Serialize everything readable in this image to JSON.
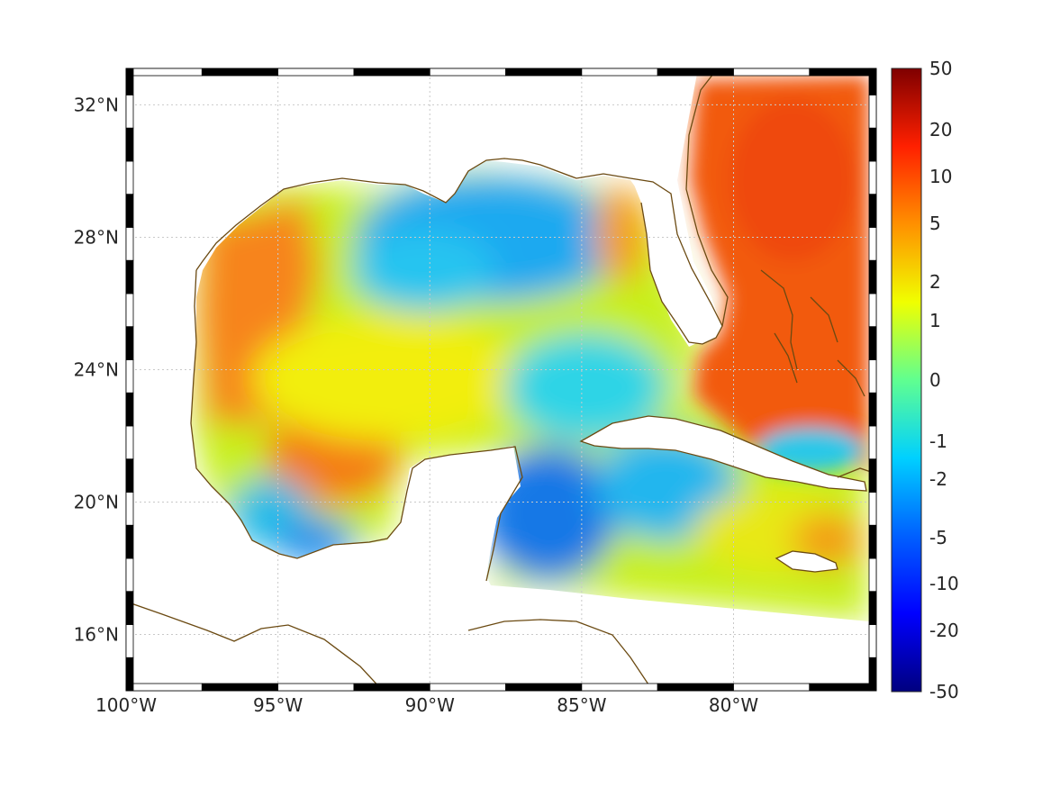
{
  "map": {
    "lon_range": [
      -100,
      -75.3
    ],
    "lat_range": [
      14.3,
      33.1
    ],
    "x_tick_labels": [
      {
        "lon": -100,
        "label": "100°W"
      },
      {
        "lon": -95,
        "label": "95°W"
      },
      {
        "lon": -90,
        "label": "90°W"
      },
      {
        "lon": -85,
        "label": "85°W"
      },
      {
        "lon": -80,
        "label": "80°W"
      }
    ],
    "y_tick_labels": [
      {
        "lat": 32,
        "label": "32°N"
      },
      {
        "lat": 28,
        "label": "28°N"
      },
      {
        "lat": 24,
        "label": "24°N"
      },
      {
        "lat": 20,
        "label": "20°N"
      },
      {
        "lat": 16,
        "label": "16°N"
      }
    ],
    "grid": "dotted",
    "coastline_color": "#6b4a12"
  },
  "colorbar": {
    "colormap": "jet",
    "scale": "nonlinear",
    "tick_labels": [
      {
        "value": 50,
        "label": "50"
      },
      {
        "value": 20,
        "label": "20"
      },
      {
        "value": 10,
        "label": "10"
      },
      {
        "value": 5,
        "label": "5"
      },
      {
        "value": 2,
        "label": "2"
      },
      {
        "value": 1,
        "label": "1"
      },
      {
        "value": 0,
        "label": "0"
      },
      {
        "value": -1,
        "label": "-1"
      },
      {
        "value": -2,
        "label": "-2"
      },
      {
        "value": -5,
        "label": "-5"
      },
      {
        "value": -10,
        "label": "-10"
      },
      {
        "value": -20,
        "label": "-20"
      },
      {
        "value": -50,
        "label": "-50"
      }
    ]
  },
  "field_regions": [
    {
      "name": "Atlantic east of Florida",
      "level": "high",
      "color": "#f25a0a"
    },
    {
      "name": "Western Gulf",
      "level": "high",
      "color": "#f87a14"
    },
    {
      "name": "Bay of Campeche",
      "level": "high",
      "color": "#f6841a"
    },
    {
      "name": "Northern Gulf",
      "level": "low",
      "color": "#1ea9f0"
    },
    {
      "name": "NW Caribbean",
      "level": "low",
      "color": "#1278e6"
    },
    {
      "name": "Central Gulf",
      "level": "near zero",
      "color": "#f3f20c"
    }
  ]
}
